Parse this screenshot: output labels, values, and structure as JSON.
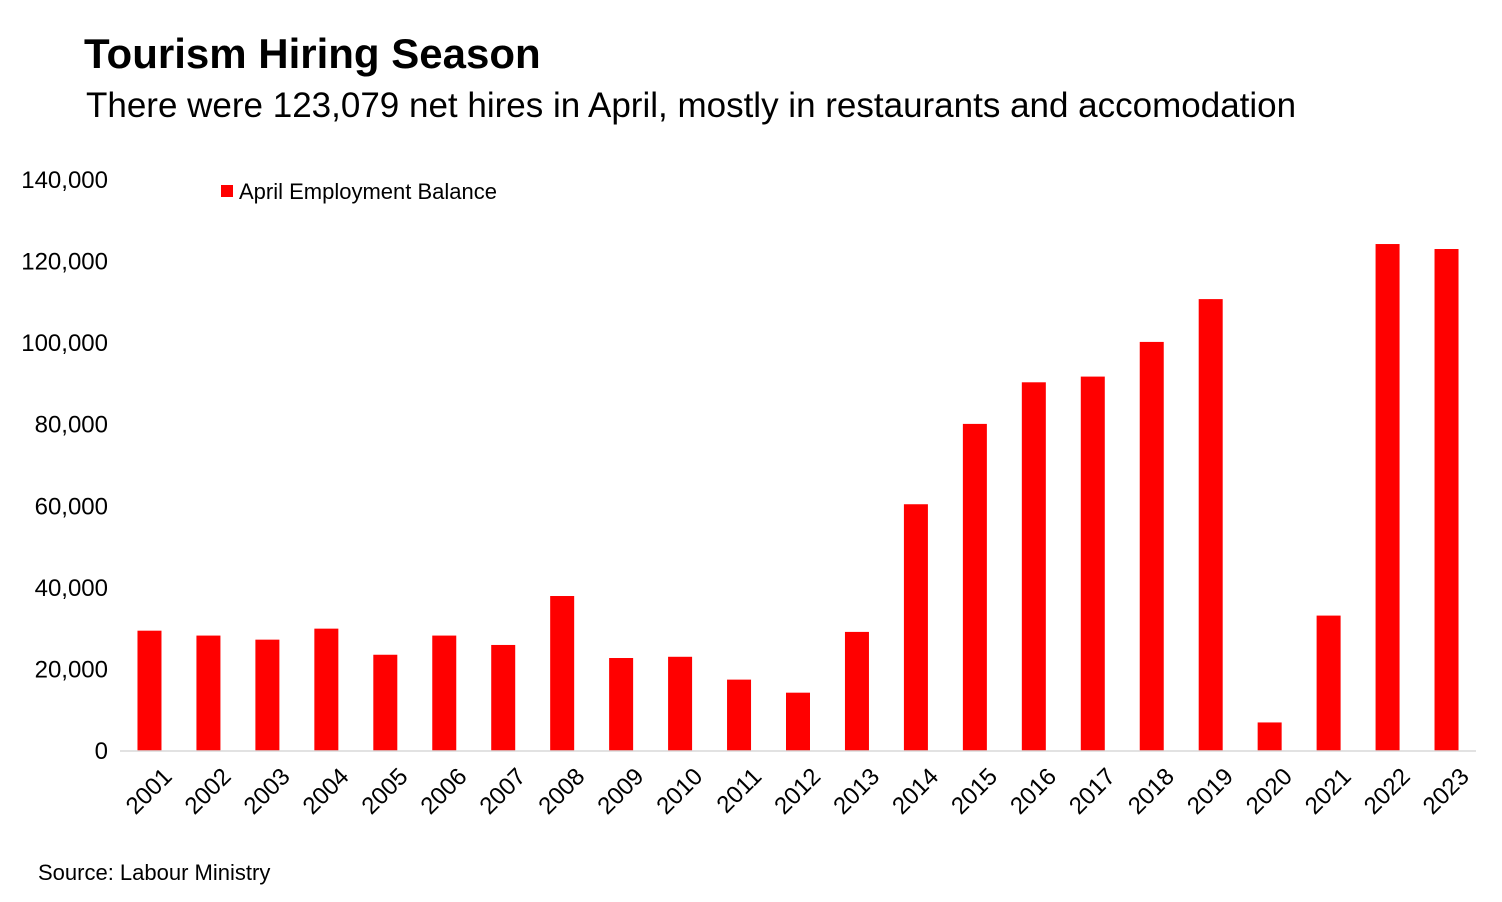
{
  "chart_data": {
    "type": "bar",
    "title": "Tourism Hiring Season",
    "subtitle": "There were 123,079 net hires in April, mostly in restaurants and accomodation",
    "source": "Source: Labour Ministry",
    "xlabel": "",
    "ylabel": "",
    "categories": [
      "2001",
      "2002",
      "2003",
      "2004",
      "2005",
      "2006",
      "2007",
      "2008",
      "2009",
      "2010",
      "2011",
      "2012",
      "2013",
      "2014",
      "2015",
      "2016",
      "2017",
      "2018",
      "2019",
      "2020",
      "2021",
      "2022",
      "2023"
    ],
    "series": [
      {
        "name": "April Employment Balance",
        "color": "#ff0000",
        "values": [
          29500,
          28300,
          27300,
          30000,
          23600,
          28300,
          26000,
          38000,
          22800,
          23100,
          17500,
          14300,
          29200,
          60500,
          80200,
          90400,
          91800,
          100300,
          110800,
          7000,
          33200,
          124300,
          123079
        ]
      }
    ],
    "ylim": [
      0,
      140000
    ],
    "yticks": [
      0,
      20000,
      40000,
      60000,
      80000,
      100000,
      120000,
      140000
    ],
    "ytick_labels": [
      "0",
      "20,000",
      "40,000",
      "60,000",
      "80,000",
      "100,000",
      "120,000",
      "140,000"
    ],
    "grid": false,
    "legend_position": "top-left"
  }
}
